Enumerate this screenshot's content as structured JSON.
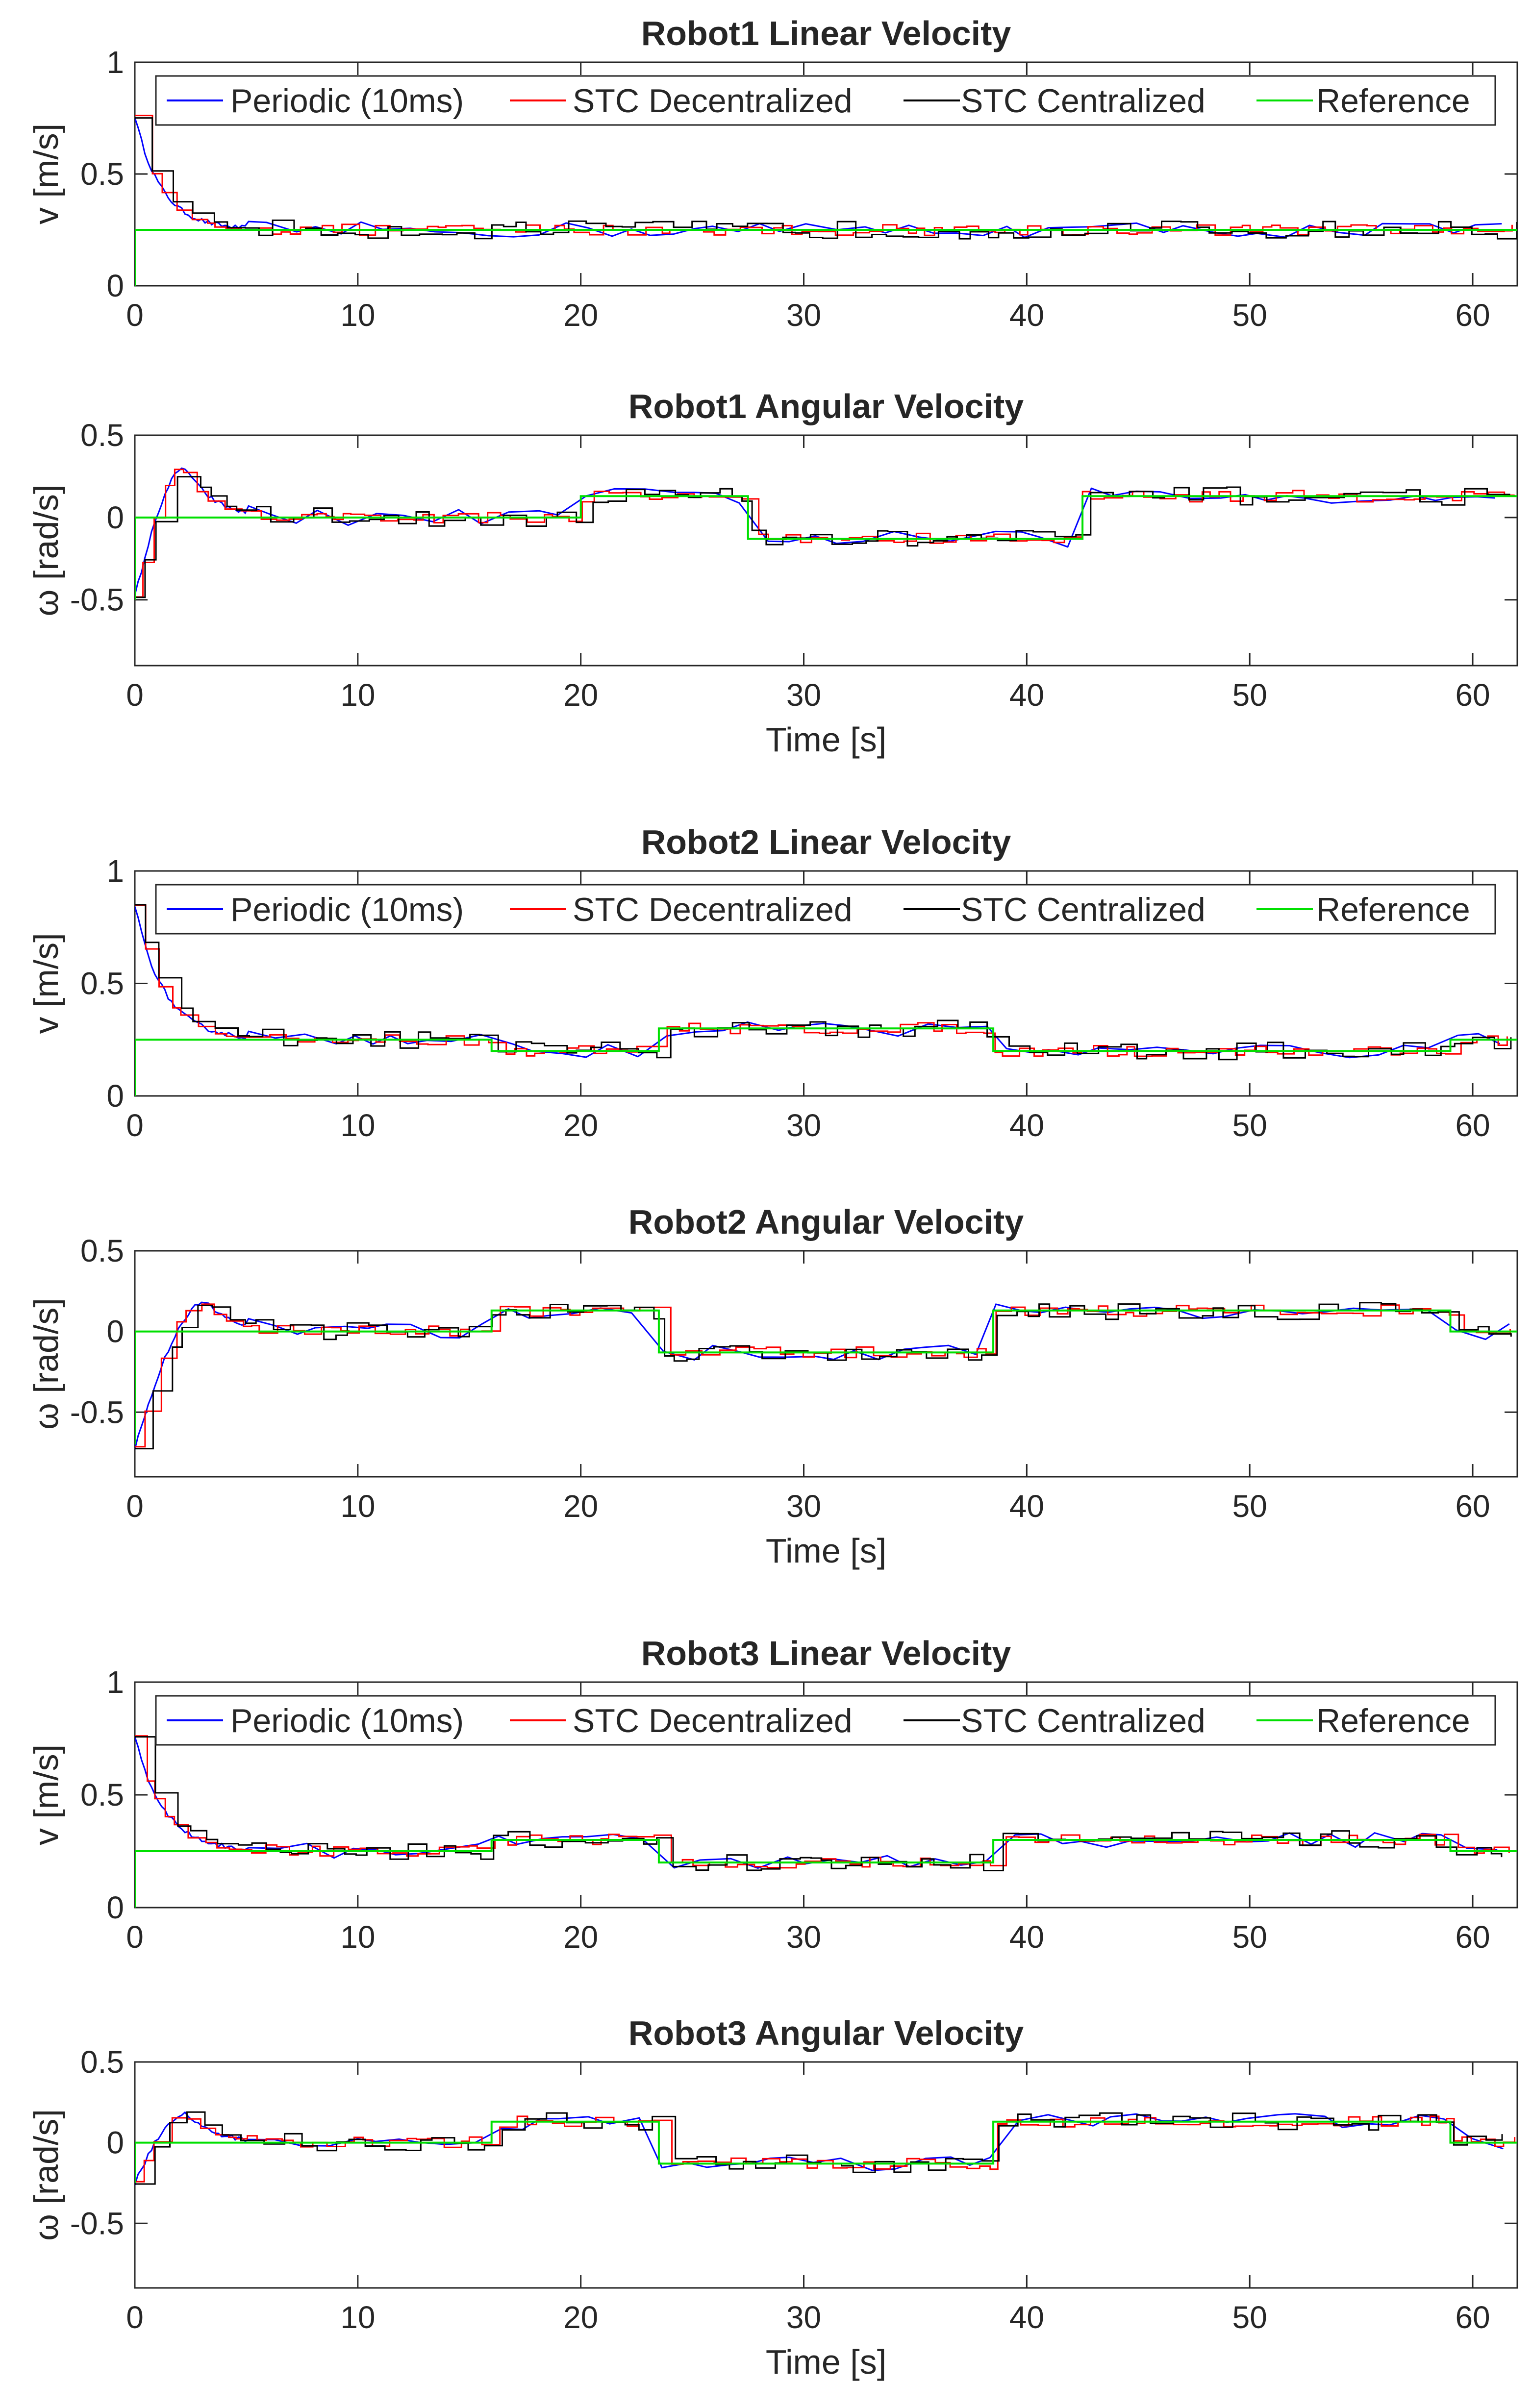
{
  "colors": {
    "periodic": "#0000ff",
    "stc_decentralized": "#ff0000",
    "stc_centralized": "#000000",
    "reference": "#00e000",
    "axes": "#262626"
  },
  "legend": {
    "items": [
      {
        "key": "periodic",
        "label": "Periodic (10ms)"
      },
      {
        "key": "stc_decentralized",
        "label": "STC Decentralized"
      },
      {
        "key": "stc_centralized",
        "label": "STC Centralized"
      },
      {
        "key": "reference",
        "label": "Reference"
      }
    ]
  },
  "chart_data": [
    {
      "type": "line",
      "title": "Robot1 Linear Velocity",
      "xlabel": "",
      "ylabel": "v [m/s]",
      "xlim": [
        0,
        62
      ],
      "ylim": [
        0,
        1
      ],
      "xticks": [
        0,
        10,
        20,
        30,
        40,
        50,
        60
      ],
      "yticks": [
        0,
        0.5,
        1
      ],
      "legend": true,
      "reference": [
        [
          0,
          0
        ],
        [
          0,
          0.25
        ],
        [
          62,
          0.25
        ]
      ],
      "transient": {
        "start": 0.76,
        "tau": 1.2
      }
    },
    {
      "type": "line",
      "title": "Robot1 Angular Velocity",
      "xlabel": "Time [s]",
      "ylabel": "ω [rad/s]",
      "xlim": [
        0,
        62
      ],
      "ylim": [
        -0.9,
        0.5
      ],
      "xticks": [
        0,
        10,
        20,
        30,
        40,
        50,
        60
      ],
      "yticks": [
        -0.5,
        0,
        0.5
      ],
      "legend": false,
      "reference": [
        [
          0,
          -0.5
        ],
        [
          0,
          0
        ],
        [
          20,
          0
        ],
        [
          20,
          0.13
        ],
        [
          27.5,
          0.13
        ],
        [
          27.5,
          -0.13
        ],
        [
          42.5,
          -0.13
        ],
        [
          42.5,
          0.13
        ],
        [
          62,
          0.13
        ]
      ],
      "transient": {
        "start": -0.48,
        "peak": 0.3,
        "peak_t": 2.3
      }
    },
    {
      "type": "line",
      "title": "Robot2 Linear Velocity",
      "xlabel": "",
      "ylabel": "v [m/s]",
      "xlim": [
        0,
        62
      ],
      "ylim": [
        0,
        1
      ],
      "xticks": [
        0,
        10,
        20,
        30,
        40,
        50,
        60
      ],
      "yticks": [
        0,
        0.5,
        1
      ],
      "legend": true,
      "reference": [
        [
          0,
          0
        ],
        [
          0,
          0.25
        ],
        [
          16,
          0.25
        ],
        [
          16,
          0.2
        ],
        [
          23.5,
          0.2
        ],
        [
          23.5,
          0.3
        ],
        [
          38.5,
          0.3
        ],
        [
          38.5,
          0.2
        ],
        [
          59,
          0.2
        ],
        [
          59,
          0.25
        ],
        [
          62,
          0.25
        ]
      ],
      "transient": {
        "start": 0.85,
        "tau": 1.3
      }
    },
    {
      "type": "line",
      "title": "Robot2 Angular Velocity",
      "xlabel": "Time [s]",
      "ylabel": "ω [rad/s]",
      "xlim": [
        0,
        62
      ],
      "ylim": [
        -0.9,
        0.5
      ],
      "xticks": [
        0,
        10,
        20,
        30,
        40,
        50,
        60
      ],
      "yticks": [
        -0.5,
        0,
        0.5
      ],
      "legend": false,
      "reference": [
        [
          0,
          -0.7
        ],
        [
          0,
          0
        ],
        [
          16,
          0
        ],
        [
          16,
          0.13
        ],
        [
          23.5,
          0.13
        ],
        [
          23.5,
          -0.13
        ],
        [
          38.5,
          -0.13
        ],
        [
          38.5,
          0.13
        ],
        [
          59,
          0.13
        ],
        [
          59,
          0
        ],
        [
          62,
          0
        ]
      ],
      "transient": {
        "start": -0.72,
        "peak": 0.18,
        "peak_t": 3.2
      }
    },
    {
      "type": "line",
      "title": "Robot3 Linear Velocity",
      "xlabel": "",
      "ylabel": "v [m/s]",
      "xlim": [
        0,
        62
      ],
      "ylim": [
        0,
        1
      ],
      "xticks": [
        0,
        10,
        20,
        30,
        40,
        50,
        60
      ],
      "yticks": [
        0,
        0.5,
        1
      ],
      "legend": true,
      "reference": [
        [
          0,
          0
        ],
        [
          0,
          0.25
        ],
        [
          16,
          0.25
        ],
        [
          16,
          0.3
        ],
        [
          23.5,
          0.3
        ],
        [
          23.5,
          0.2
        ],
        [
          38.5,
          0.2
        ],
        [
          38.5,
          0.3
        ],
        [
          59,
          0.3
        ],
        [
          59,
          0.25
        ],
        [
          62,
          0.25
        ]
      ],
      "transient": {
        "start": 0.76,
        "tau": 1.3
      }
    },
    {
      "type": "line",
      "title": "Robot3 Angular Velocity",
      "xlabel": "Time [s]",
      "ylabel": "ω [rad/s]",
      "xlim": [
        0,
        62
      ],
      "ylim": [
        -0.9,
        0.5
      ],
      "xticks": [
        0,
        10,
        20,
        30,
        40,
        50,
        60
      ],
      "yticks": [
        -0.5,
        0,
        0.5
      ],
      "legend": false,
      "reference": [
        [
          0,
          -0.25
        ],
        [
          0,
          0
        ],
        [
          16,
          0
        ],
        [
          16,
          0.13
        ],
        [
          23.5,
          0.13
        ],
        [
          23.5,
          -0.13
        ],
        [
          38.5,
          -0.13
        ],
        [
          38.5,
          0.13
        ],
        [
          59,
          0.13
        ],
        [
          59,
          0
        ],
        [
          62,
          0
        ]
      ],
      "transient": {
        "start": -0.25,
        "peak": 0.18,
        "peak_t": 2.3
      }
    }
  ]
}
